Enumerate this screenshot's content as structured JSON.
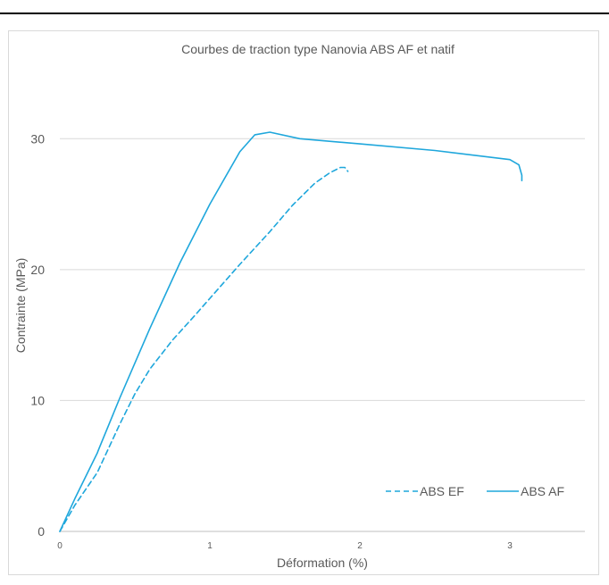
{
  "chart_data": {
    "type": "line",
    "title": "Courbes de traction type Nanovia ABS AF et natif",
    "xlabel": "Déformation (%)",
    "ylabel": "Contrainte (MPa)",
    "xlim": [
      0,
      3.5
    ],
    "ylim": [
      0,
      35
    ],
    "x_ticks": [
      "0",
      "1",
      "2",
      "3"
    ],
    "y_ticks": [
      "0",
      "10",
      "20",
      "30"
    ],
    "grid": "horizontal",
    "legend_position": "bottom-right",
    "series": [
      {
        "name": "ABS EF",
        "style": "dashed",
        "color": "#1fa7dc",
        "x": [
          0,
          0.1,
          0.25,
          0.4,
          0.5,
          0.6,
          0.75,
          0.9,
          1.0,
          1.2,
          1.4,
          1.55,
          1.7,
          1.8,
          1.87,
          1.9,
          1.92
        ],
        "y": [
          0,
          2.0,
          4.5,
          8.2,
          10.5,
          12.4,
          14.6,
          16.5,
          17.8,
          20.4,
          22.9,
          24.9,
          26.6,
          27.4,
          27.8,
          27.8,
          27.5
        ]
      },
      {
        "name": "ABS AF",
        "style": "solid",
        "color": "#1fa7dc",
        "x": [
          0,
          0.1,
          0.25,
          0.26,
          0.4,
          0.6,
          0.8,
          1.0,
          1.2,
          1.3,
          1.4,
          1.6,
          2.0,
          2.5,
          3.0,
          3.06,
          3.08,
          3.08
        ],
        "y": [
          0,
          2.5,
          6.0,
          6.3,
          10.2,
          15.5,
          20.5,
          25.0,
          29.0,
          30.3,
          30.5,
          30.0,
          29.6,
          29.1,
          28.4,
          28.0,
          27.2,
          26.8
        ]
      }
    ]
  },
  "colors": {
    "line": "#1fa7dc",
    "grid": "#d9d9d9",
    "text": "#595959"
  }
}
